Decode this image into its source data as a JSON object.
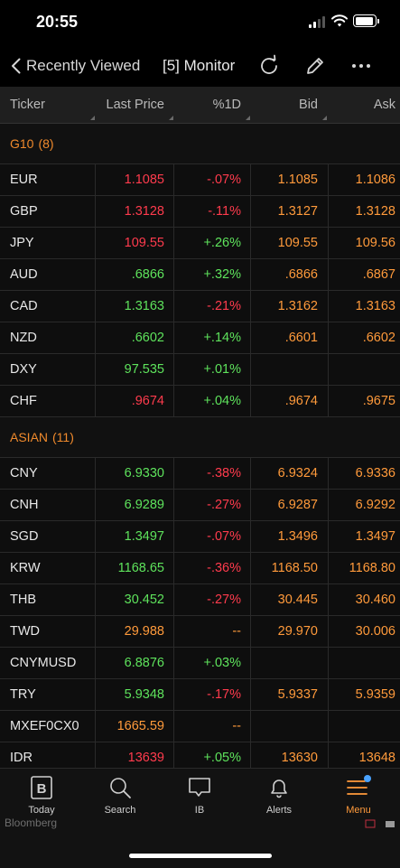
{
  "status": {
    "time": "20:55"
  },
  "nav": {
    "back_label": "Recently Viewed",
    "title": "[5] Monitor"
  },
  "headers": {
    "ticker": "Ticker",
    "last": "Last Price",
    "chg": "%1D",
    "bid": "Bid",
    "ask": "Ask"
  },
  "colors": {
    "up": "#5ee35c",
    "down": "#ff3b4d",
    "neutral": "#ff9a3b",
    "group": "#f08a2c"
  },
  "groups": [
    {
      "label": "G10",
      "count": "(8)",
      "rows": [
        {
          "ticker": "EUR",
          "last": "1.1085",
          "last_c": "red",
          "chg": "-.07%",
          "chg_c": "red",
          "bid": "1.1085",
          "ask": "1.1086"
        },
        {
          "ticker": "GBP",
          "last": "1.3128",
          "last_c": "red",
          "chg": "-.11%",
          "chg_c": "red",
          "bid": "1.3127",
          "ask": "1.3128"
        },
        {
          "ticker": "JPY",
          "last": "109.55",
          "last_c": "red",
          "chg": "+.26%",
          "chg_c": "green",
          "bid": "109.55",
          "ask": "109.56"
        },
        {
          "ticker": "AUD",
          "last": ".6866",
          "last_c": "green",
          "chg": "+.32%",
          "chg_c": "green",
          "bid": ".6866",
          "ask": ".6867"
        },
        {
          "ticker": "CAD",
          "last": "1.3163",
          "last_c": "green",
          "chg": "-.21%",
          "chg_c": "red",
          "bid": "1.3162",
          "ask": "1.3163"
        },
        {
          "ticker": "NZD",
          "last": ".6602",
          "last_c": "green",
          "chg": "+.14%",
          "chg_c": "green",
          "bid": ".6601",
          "ask": ".6602"
        },
        {
          "ticker": "DXY",
          "last": "97.535",
          "last_c": "green",
          "chg": "+.01%",
          "chg_c": "green",
          "bid": "",
          "ask": ""
        },
        {
          "ticker": "CHF",
          "last": ".9674",
          "last_c": "red",
          "chg": "+.04%",
          "chg_c": "green",
          "bid": ".9674",
          "ask": ".9675"
        }
      ]
    },
    {
      "label": "ASIAN",
      "count": "(11)",
      "rows": [
        {
          "ticker": "CNY",
          "last": "6.9330",
          "last_c": "green",
          "chg": "-.38%",
          "chg_c": "red",
          "bid": "6.9324",
          "ask": "6.9336"
        },
        {
          "ticker": "CNH",
          "last": "6.9289",
          "last_c": "green",
          "chg": "-.27%",
          "chg_c": "red",
          "bid": "6.9287",
          "ask": "6.9292"
        },
        {
          "ticker": "SGD",
          "last": "1.3497",
          "last_c": "green",
          "chg": "-.07%",
          "chg_c": "red",
          "bid": "1.3496",
          "ask": "1.3497"
        },
        {
          "ticker": "KRW",
          "last": "1168.65",
          "last_c": "green",
          "chg": "-.36%",
          "chg_c": "red",
          "bid": "1168.50",
          "ask": "1168.80"
        },
        {
          "ticker": "THB",
          "last": "30.452",
          "last_c": "green",
          "chg": "-.27%",
          "chg_c": "red",
          "bid": "30.445",
          "ask": "30.460"
        },
        {
          "ticker": "TWD",
          "last": "29.988",
          "last_c": "orange",
          "chg": "--",
          "chg_c": "orange",
          "bid": "29.970",
          "ask": "30.006"
        },
        {
          "ticker": "CNYMUSD",
          "last": "6.8876",
          "last_c": "green",
          "chg": "+.03%",
          "chg_c": "green",
          "bid": "",
          "ask": ""
        },
        {
          "ticker": "TRY",
          "last": "5.9348",
          "last_c": "green",
          "chg": "-.17%",
          "chg_c": "red",
          "bid": "5.9337",
          "ask": "5.9359"
        },
        {
          "ticker": "MXEF0CX0",
          "last": "1665.59",
          "last_c": "orange",
          "chg": "--",
          "chg_c": "orange",
          "bid": "",
          "ask": ""
        },
        {
          "ticker": "IDR",
          "last": "13639",
          "last_c": "red",
          "chg": "+.05%",
          "chg_c": "green",
          "bid": "13630",
          "ask": "13648"
        }
      ]
    }
  ],
  "tabs": [
    {
      "label": "Today",
      "icon": "bloomberg-b-icon"
    },
    {
      "label": "Search",
      "icon": "search-icon"
    },
    {
      "label": "IB",
      "icon": "chat-bubble-icon"
    },
    {
      "label": "Alerts",
      "icon": "bell-icon"
    },
    {
      "label": "Menu",
      "icon": "menu-icon",
      "active": true
    }
  ],
  "footer": {
    "brand": "Bloomberg"
  }
}
